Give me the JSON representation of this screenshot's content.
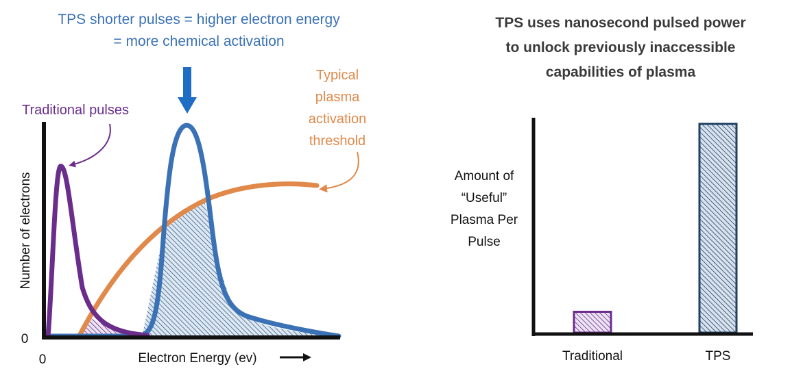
{
  "colors": {
    "blue": "#3b72b6",
    "arrow_blue": "#1f6ec4",
    "purple": "#6b2d8c",
    "orange": "#e0894a",
    "dark": "#1a1a1a",
    "gray_text": "#3a3a3a",
    "bar_fill_hatch": "#1f3f63"
  },
  "left_chart": {
    "headline": [
      "TPS shorter pulses = higher electron energy",
      "= more chemical activation"
    ],
    "traditional_label": "Traditional pulses",
    "threshold_label": [
      "Typical",
      "plasma",
      "activation",
      "threshold"
    ],
    "y_axis_label": "Number of electrons",
    "x_axis_label": "Electron Energy (ev)",
    "origin_y_label": "0",
    "origin_x_label": "0"
  },
  "right_chart": {
    "headline": [
      "TPS uses nanosecond pulsed power",
      "to unlock previously inaccessible",
      "capabilities of plasma"
    ],
    "y_axis_label": [
      "Amount of",
      "“Useful”",
      "Plasma Per",
      "Pulse"
    ]
  },
  "chart_data": [
    {
      "type": "line",
      "title": "TPS shorter pulses = higher electron energy = more chemical activation",
      "xlabel": "Electron Energy (ev)",
      "ylabel": "Number of electrons",
      "series": [
        {
          "name": "Traditional pulses",
          "color": "#6b2d8c"
        },
        {
          "name": "Typical plasma activation threshold",
          "color": "#e0894a"
        }
      ]
    },
    {
      "type": "bar",
      "title": "TPS uses nanosecond pulsed power to unlock previously inaccessible capabilities of plasma",
      "categories": [
        "Traditional",
        "TPS"
      ],
      "values": [
        0.1,
        1.0
      ],
      "ylabel": "Amount of “Useful” Plasma Per Pulse",
      "colors": [
        "#6b2d8c",
        "#1f3f63"
      ]
    }
  ]
}
